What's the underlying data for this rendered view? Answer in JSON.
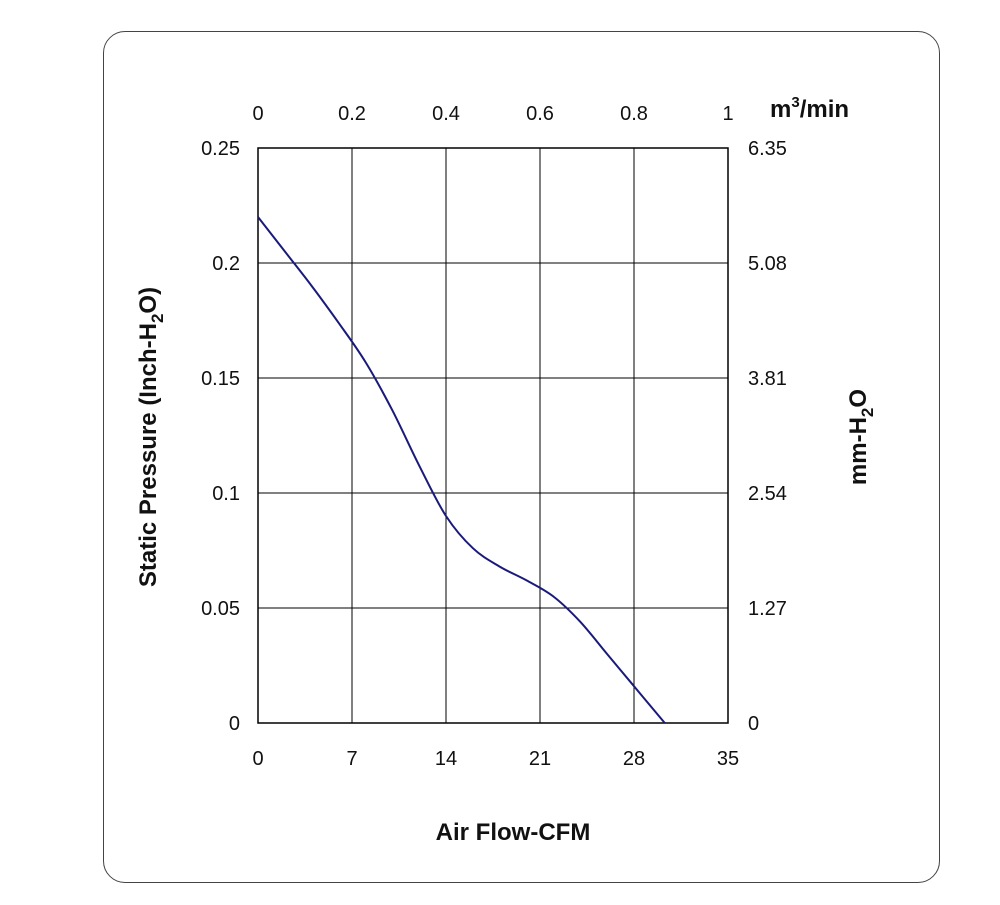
{
  "chart_data": {
    "type": "line",
    "xlabel": "Air Flow-CFM",
    "ylabel_left": {
      "base": "Static Pressure (Inch-H",
      "sub": "2",
      "tail": "O)"
    },
    "ylabel_right": {
      "base": "mm-H",
      "sub": "2",
      "tail": "O"
    },
    "xlabel_top": {
      "base": "m",
      "sup": "3",
      "tail": "/min"
    },
    "xlim": [
      0,
      35
    ],
    "ylim": [
      0,
      0.25
    ],
    "x_ticks": [
      "0",
      "7",
      "14",
      "21",
      "28",
      "35"
    ],
    "y_ticks_left": [
      "0",
      "0.05",
      "0.1",
      "0.15",
      "0.2",
      "0.25"
    ],
    "y_ticks_right": [
      "0",
      "1.27",
      "2.54",
      "3.81",
      "5.08",
      "6.35"
    ],
    "x_ticks_top": [
      "0",
      "0.2",
      "0.4",
      "0.6",
      "0.8",
      "1"
    ],
    "grid": true,
    "line_color": "#1a1a7a",
    "series": [
      {
        "x": [
          0,
          2,
          4,
          6,
          8,
          10,
          12,
          14,
          16,
          18,
          20,
          22,
          24,
          26,
          28,
          30,
          30.3
        ],
        "y": [
          0.22,
          0.205,
          0.19,
          0.174,
          0.157,
          0.136,
          0.112,
          0.09,
          0.076,
          0.068,
          0.062,
          0.055,
          0.044,
          0.03,
          0.016,
          0.002,
          0
        ]
      }
    ]
  }
}
